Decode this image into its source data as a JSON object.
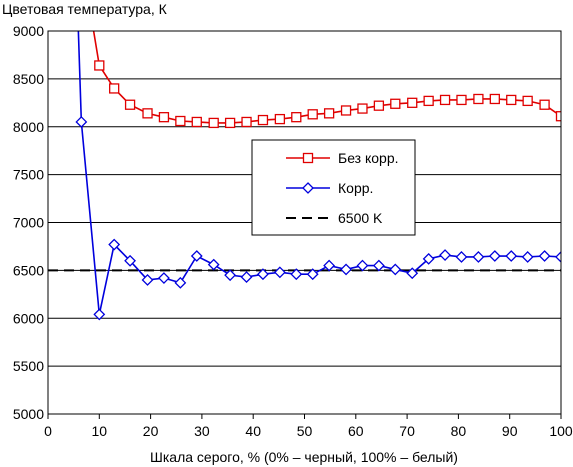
{
  "chart_data": {
    "type": "line",
    "title": "",
    "ylabel": "Цветовая температура, К",
    "xlabel": "Шкала серого, % (0% – черный, 100% – белый)",
    "xlim": [
      0,
      100
    ],
    "ylim": [
      5000,
      9000
    ],
    "xticks": [
      0,
      10,
      20,
      30,
      40,
      50,
      60,
      70,
      80,
      90,
      100
    ],
    "yticks": [
      5000,
      5500,
      6000,
      6500,
      7000,
      7500,
      8000,
      8500,
      9000
    ],
    "grid": "horizontal",
    "legend_position": "center-right",
    "series": [
      {
        "name": "Без корр.",
        "color": "#e00000",
        "marker": "square",
        "x": [
          8.8,
          10,
          12.9,
          16,
          19.4,
          22.6,
          25.8,
          29,
          32.3,
          35.5,
          38.7,
          41.9,
          45.2,
          48.4,
          51.6,
          54.8,
          58.1,
          61.3,
          64.5,
          67.7,
          71,
          74.2,
          77.4,
          80.6,
          83.9,
          87.1,
          90.3,
          93.5,
          96.8,
          100
        ],
        "y": [
          9030,
          8640,
          8400,
          8230,
          8140,
          8100,
          8060,
          8050,
          8040,
          8040,
          8050,
          8070,
          8080,
          8100,
          8130,
          8140,
          8170,
          8190,
          8220,
          8240,
          8250,
          8270,
          8280,
          8280,
          8290,
          8290,
          8280,
          8270,
          8230,
          8110
        ]
      },
      {
        "name": "Корр.",
        "color": "#0000dd",
        "marker": "diamond",
        "x": [
          5.9,
          6.5,
          10,
          12.9,
          16,
          19.4,
          22.6,
          25.8,
          29,
          32.3,
          35.5,
          38.7,
          41.9,
          45.2,
          48.4,
          51.6,
          54.8,
          58.1,
          61.3,
          64.5,
          67.7,
          71,
          74.2,
          77.4,
          80.6,
          83.9,
          87.1,
          90.3,
          93.5,
          96.8,
          100
        ],
        "y": [
          9030,
          8050,
          6040,
          6770,
          6600,
          6400,
          6420,
          6370,
          6650,
          6560,
          6450,
          6430,
          6460,
          6480,
          6460,
          6460,
          6550,
          6510,
          6550,
          6550,
          6510,
          6470,
          6620,
          6660,
          6640,
          6640,
          6650,
          6650,
          6640,
          6650,
          6640
        ]
      },
      {
        "name": "6500 K",
        "color": "#000000",
        "marker": "none",
        "dash": "dashed",
        "x": [
          0,
          100
        ],
        "y": [
          6500,
          6500
        ]
      }
    ]
  }
}
